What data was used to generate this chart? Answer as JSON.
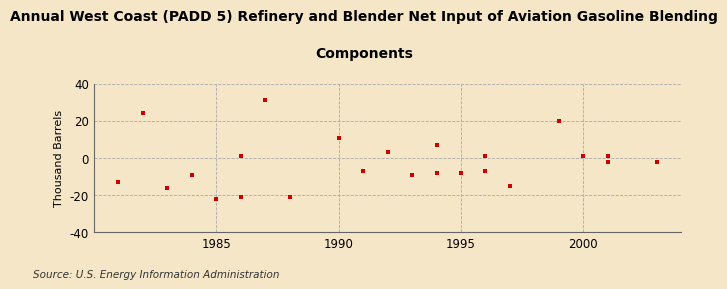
{
  "title_line1": "Annual West Coast (PADD 5) Refinery and Blender Net Input of Aviation Gasoline Blending",
  "title_line2": "Components",
  "ylabel": "Thousand Barrels",
  "source": "Source: U.S. Energy Information Administration",
  "background_color": "#f5e6c8",
  "dot_color": "#cc0000",
  "grid_color": "#aaaaaa",
  "years": [
    1981,
    1982,
    1983,
    1984,
    1985,
    1986,
    1986,
    1987,
    1988,
    1990,
    1991,
    1992,
    1993,
    1994,
    1994,
    1995,
    1996,
    1996,
    1997,
    1999,
    2000,
    2001,
    2001,
    2003
  ],
  "values": [
    -13,
    24,
    -16,
    -9,
    -22,
    1,
    -21,
    31,
    -21,
    11,
    -7,
    3,
    -9,
    7,
    -8,
    -8,
    1,
    -7,
    -15,
    20,
    1,
    -2,
    1,
    -2
  ],
  "xlim": [
    1980,
    2004
  ],
  "ylim": [
    -40,
    40
  ],
  "xticks": [
    1985,
    1990,
    1995,
    2000
  ],
  "yticks": [
    -40,
    -20,
    0,
    20,
    40
  ],
  "title_fontsize": 10,
  "label_fontsize": 8,
  "tick_fontsize": 8.5,
  "source_fontsize": 7.5
}
